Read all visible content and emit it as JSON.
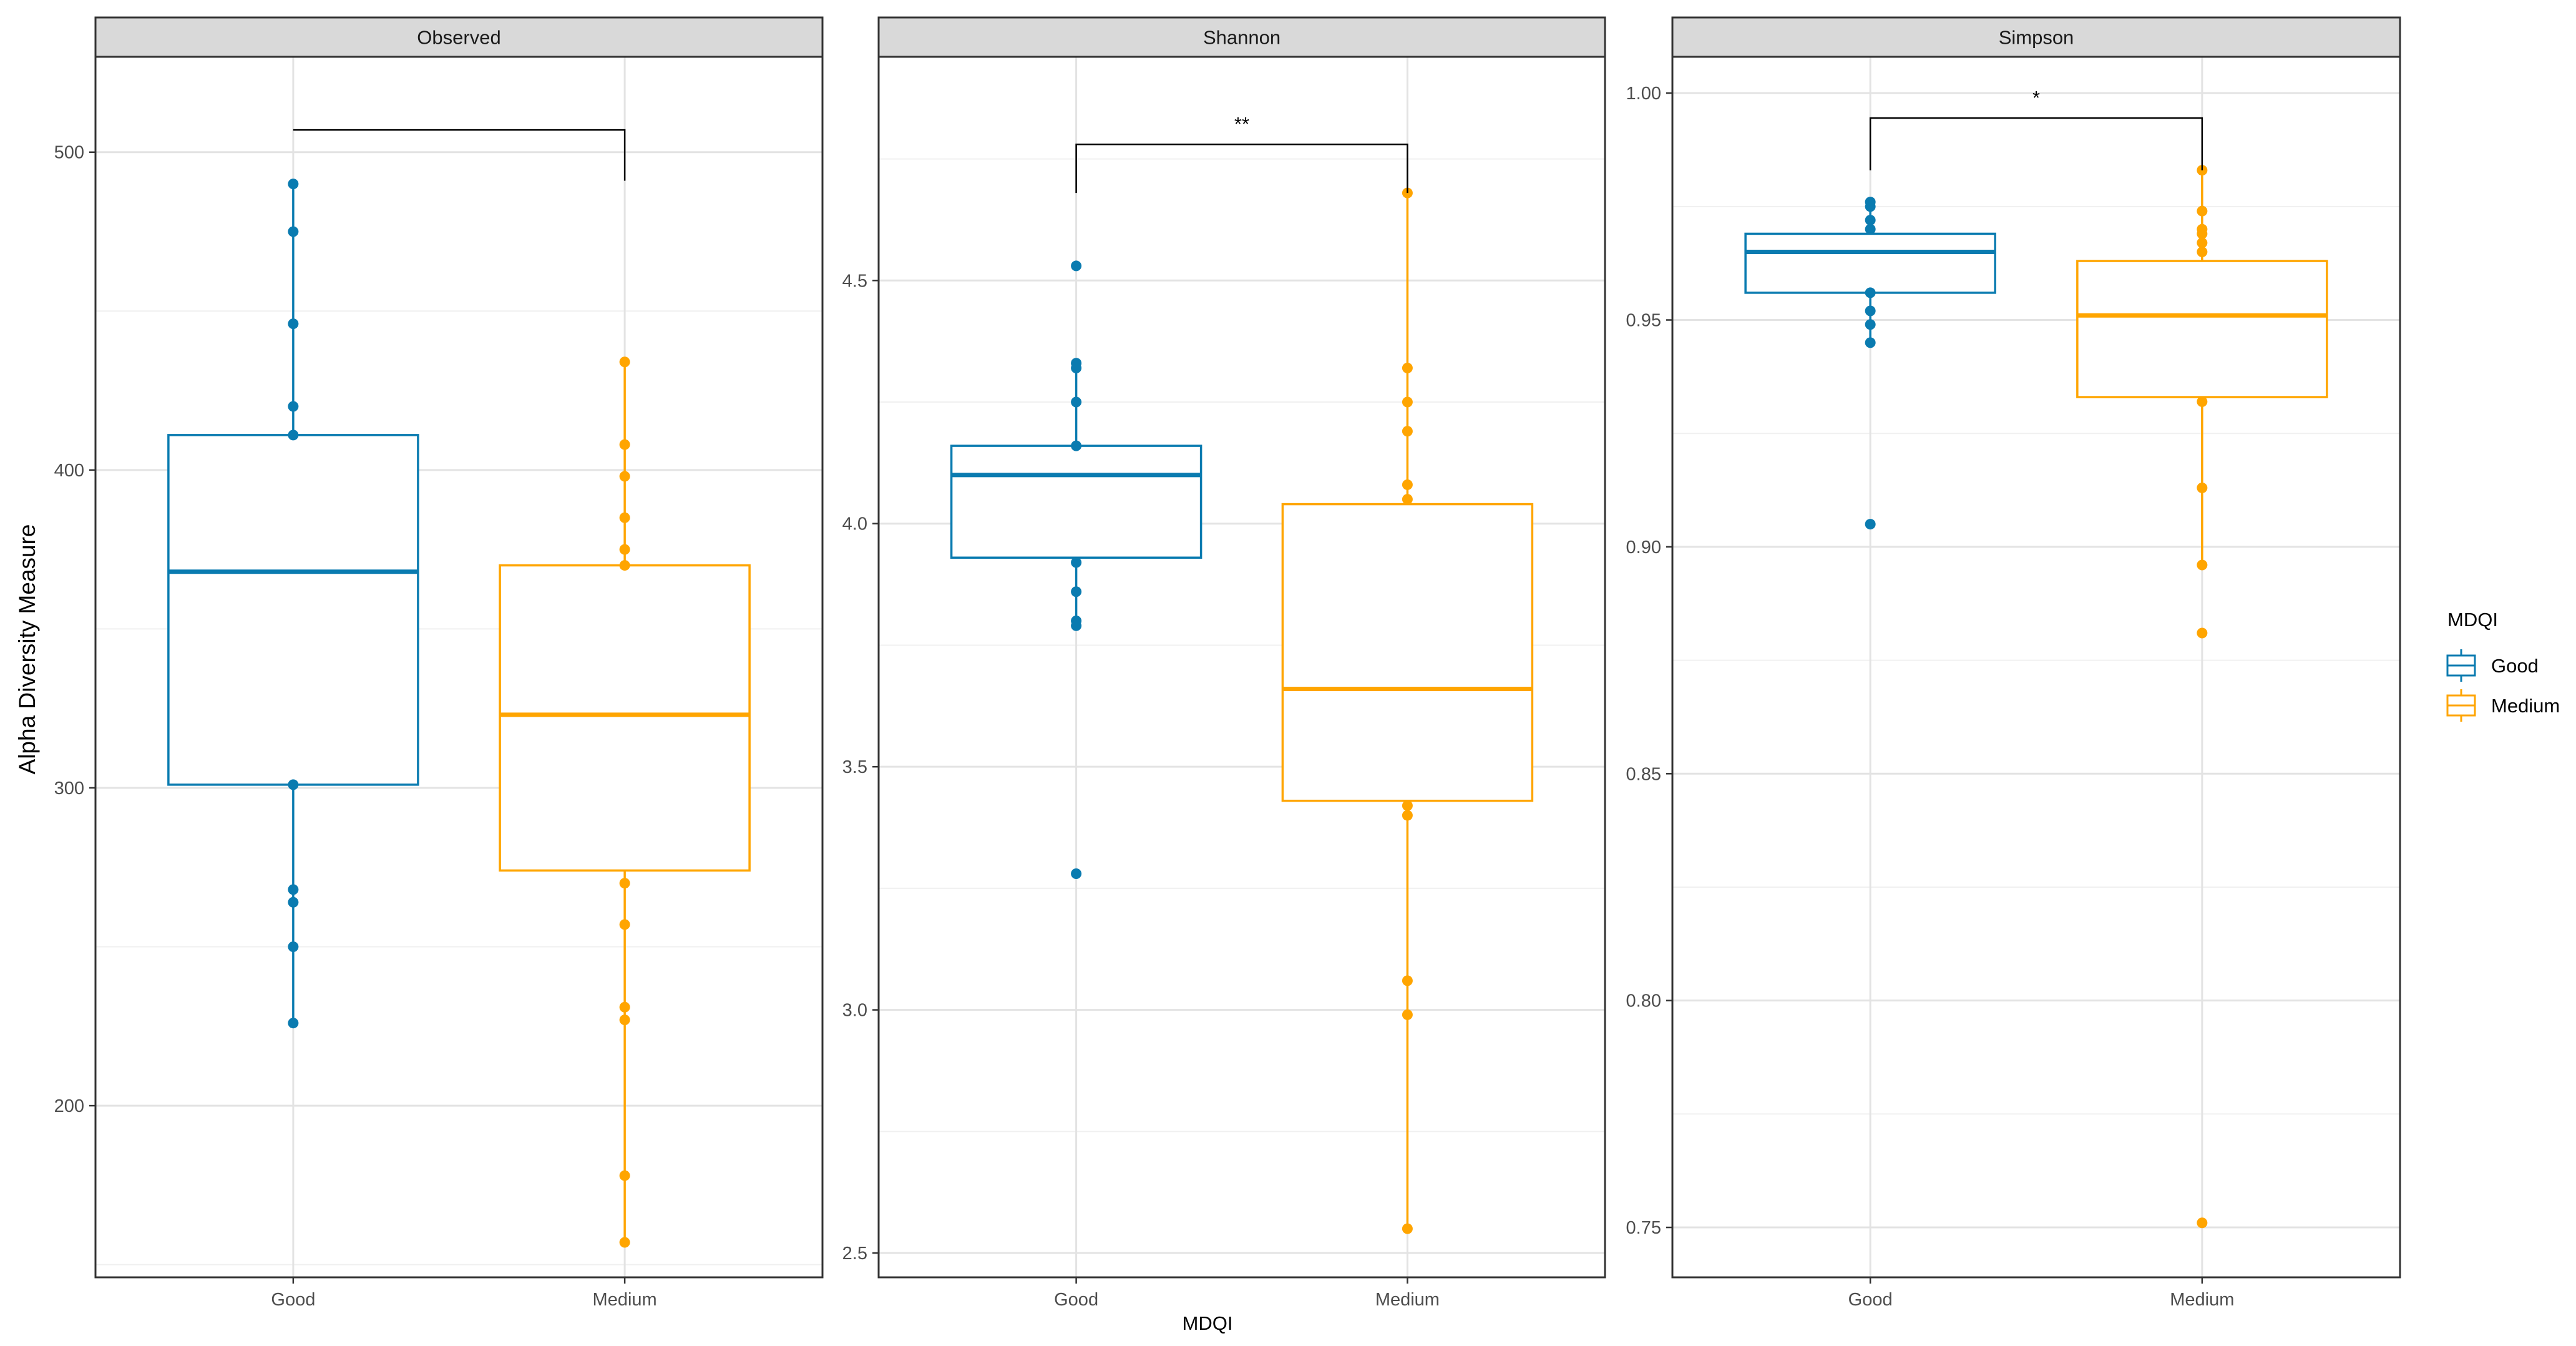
{
  "chart_data": {
    "type": "boxplot",
    "ylabel": "Alpha Diversity Measure",
    "xlabel": "MDQI",
    "categories": [
      "Good",
      "Medium"
    ],
    "colors": {
      "Good": "#0a7bb0",
      "Medium": "#ffa500"
    },
    "legend": {
      "title": "MDQI",
      "entries": [
        "Good",
        "Medium"
      ],
      "position": "right"
    },
    "panels": [
      {
        "title": "Observed",
        "ylim": [
          146,
          530
        ],
        "ticks": [
          200,
          300,
          400,
          500
        ],
        "tick_labels": [
          "200",
          "300",
          "400",
          "500"
        ],
        "minor_ticks": [
          150,
          250,
          350,
          450
        ],
        "significance": "",
        "bracket_top": 507,
        "bracket_left_end": 507,
        "bracket_right_end": 491,
        "boxes": [
          {
            "group": "Good",
            "q1": 301,
            "median": 368,
            "q3": 411,
            "whisker_low": 226,
            "whisker_high": 490,
            "points": [
              490,
              475,
              446,
              420,
              411,
              301,
              268,
              264,
              250,
              226
            ]
          },
          {
            "group": "Medium",
            "q1": 274,
            "median": 323,
            "q3": 370,
            "whisker_low": 157,
            "whisker_high": 434,
            "points": [
              434,
              408,
              398,
              385,
              375,
              370,
              270,
              257,
              231,
              227,
              178,
              157
            ]
          }
        ]
      },
      {
        "title": "Shannon",
        "ylim": [
          2.45,
          4.96
        ],
        "ticks": [
          2.5,
          3.0,
          3.5,
          4.0,
          4.5
        ],
        "tick_labels": [
          "2.5",
          "3.0",
          "3.5",
          "4.0",
          "4.5"
        ],
        "minor_ticks": [
          2.75,
          3.25,
          3.75,
          4.25,
          4.75
        ],
        "significance": "**",
        "bracket_top": 4.78,
        "bracket_left_end": 4.68,
        "bracket_right_end": 4.68,
        "boxes": [
          {
            "group": "Good",
            "q1": 3.93,
            "median": 4.1,
            "q3": 4.16,
            "whisker_low": 3.8,
            "whisker_high": 4.33,
            "points": [
              4.53,
              4.33,
              4.32,
              4.25,
              4.16,
              3.92,
              3.86,
              3.8,
              3.79,
              3.28
            ]
          },
          {
            "group": "Medium",
            "q1": 3.43,
            "median": 3.66,
            "q3": 4.04,
            "whisker_low": 2.55,
            "whisker_high": 4.68,
            "points": [
              4.68,
              4.32,
              4.25,
              4.19,
              4.08,
              4.05,
              3.42,
              3.4,
              3.06,
              2.99,
              2.55
            ]
          }
        ]
      },
      {
        "title": "Simpson",
        "ylim": [
          0.739,
          1.008
        ],
        "ticks": [
          0.75,
          0.8,
          0.85,
          0.9,
          0.95,
          1.0
        ],
        "tick_labels": [
          "0.75",
          "0.80",
          "0.85",
          "0.90",
          "0.95",
          "1.00"
        ],
        "minor_ticks": [
          0.775,
          0.825,
          0.875,
          0.925,
          0.975
        ],
        "significance": "*",
        "bracket_top": 0.9945,
        "bracket_left_end": 0.983,
        "bracket_right_end": 0.983,
        "boxes": [
          {
            "group": "Good",
            "q1": 0.956,
            "median": 0.965,
            "q3": 0.969,
            "whisker_low": 0.945,
            "whisker_high": 0.976,
            "points": [
              0.976,
              0.975,
              0.972,
              0.97,
              0.956,
              0.952,
              0.949,
              0.945,
              0.905
            ]
          },
          {
            "group": "Medium",
            "q1": 0.933,
            "median": 0.951,
            "q3": 0.963,
            "whisker_low": 0.896,
            "whisker_high": 0.983,
            "points": [
              0.983,
              0.974,
              0.97,
              0.969,
              0.967,
              0.965,
              0.932,
              0.913,
              0.896,
              0.881,
              0.751
            ]
          }
        ]
      }
    ]
  }
}
